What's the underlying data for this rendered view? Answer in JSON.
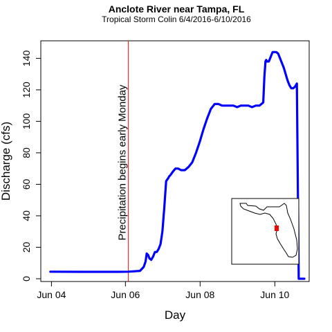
{
  "chart_data": {
    "type": "line",
    "title": "Anclote River near Tampa, FL",
    "subtitle": "Tropical Storm Colin 6/4/2016-6/10/2016",
    "xlabel": "Day",
    "ylabel": "Discharge (cfs)",
    "xlim": [
      0,
      7.13
    ],
    "ylim": [
      0,
      145
    ],
    "x_tick_values": [
      0.23,
      2.21,
      4.21,
      6.21
    ],
    "x_tick_labels": [
      "Jun 04",
      "Jun 06",
      "Jun 08",
      "Jun 10"
    ],
    "y_ticks": [
      0,
      20,
      40,
      60,
      80,
      100,
      120,
      140
    ],
    "grid": false,
    "annotation": {
      "x": 2.29,
      "text": "Precipitation begins early Monday",
      "color": "#ff0000"
    },
    "series": [
      {
        "name": "Discharge",
        "color": "#0000ff",
        "x": [
          0.2,
          1.0,
          2.0,
          2.29,
          2.6,
          2.7,
          2.75,
          2.78,
          2.82,
          2.85,
          2.9,
          2.95,
          3.0,
          3.05,
          3.1,
          3.15,
          3.2,
          3.25,
          3.3,
          3.33,
          3.36,
          3.38,
          3.42,
          3.48,
          3.55,
          3.62,
          3.7,
          3.8,
          3.9,
          4.0,
          4.1,
          4.2,
          4.3,
          4.4,
          4.5,
          4.6,
          4.7,
          4.8,
          4.9,
          5.0,
          5.1,
          5.2,
          5.3,
          5.4,
          5.5,
          5.6,
          5.7,
          5.8,
          5.9,
          5.93,
          5.96,
          5.98,
          6.0,
          6.05,
          6.1,
          6.15,
          6.2,
          6.25,
          6.3,
          6.35,
          6.4,
          6.45,
          6.5,
          6.55,
          6.6,
          6.65,
          6.7,
          6.75,
          6.8,
          6.85,
          6.9,
          6.95,
          7.0,
          7.05
        ],
        "values": [
          4.5,
          4.4,
          4.4,
          4.5,
          5.0,
          7.5,
          11,
          16,
          15,
          13,
          12,
          14,
          17,
          17,
          19,
          22,
          30,
          45,
          62,
          63,
          64,
          65,
          66,
          68,
          70,
          70,
          69,
          69,
          71,
          74,
          80,
          87,
          95,
          102,
          108,
          111,
          111,
          110,
          110,
          110,
          110,
          109,
          110,
          110,
          110,
          109,
          110,
          110,
          112,
          128,
          138,
          139,
          138,
          138,
          141,
          144,
          144,
          144,
          143,
          140,
          137,
          134,
          130,
          126,
          123,
          121,
          121,
          122,
          124,
          0,
          0,
          0,
          0,
          0
        ]
      }
    ],
    "inset": {
      "type": "map",
      "description_label": "Florida inset map",
      "marker_color": "#ff0000"
    }
  }
}
